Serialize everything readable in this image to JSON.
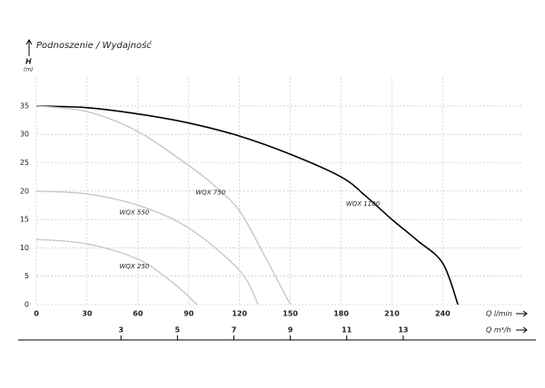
{
  "chart_data": {
    "type": "line",
    "title": "Podnoszenie / Wydajność",
    "y_label": "H",
    "y_unit": "(m)",
    "x_label": "Q l/min",
    "x2_label": "Q m³/h",
    "xlim": [
      0,
      287
    ],
    "xticks": [
      0,
      30,
      60,
      90,
      120,
      150,
      180,
      210,
      240
    ],
    "x2lim": [
      0,
      17.22
    ],
    "x2ticks": [
      3,
      5,
      7,
      9,
      11,
      13
    ],
    "ylim": [
      0,
      40
    ],
    "yticks": [
      0,
      5,
      10,
      15,
      20,
      25,
      30,
      35
    ],
    "grid": true,
    "series": [
      {
        "name": "WQX 1100",
        "color": "#000000",
        "x": [
          0,
          30,
          60,
          90,
          120,
          150,
          180,
          195,
          210,
          225,
          240,
          249
        ],
        "values": [
          35,
          34.7,
          33.6,
          32,
          29.7,
          26.5,
          22.5,
          19,
          15,
          11.3,
          7.3,
          0
        ]
      },
      {
        "name": "WQX 750",
        "color": "#c8c8c8",
        "x": [
          0,
          30,
          60,
          90,
          105,
          120,
          135,
          150
        ],
        "values": [
          35,
          34,
          30.5,
          24.5,
          21,
          16.5,
          8.5,
          0
        ]
      },
      {
        "name": "WQX 550",
        "color": "#c8c8c8",
        "x": [
          0,
          30,
          60,
          90,
          120,
          131
        ],
        "values": [
          20,
          19.5,
          17.5,
          13.5,
          6,
          0
        ]
      },
      {
        "name": "WQX 250",
        "color": "#c8c8c8",
        "x": [
          0,
          30,
          60,
          80,
          95
        ],
        "values": [
          11.5,
          10.7,
          8,
          4,
          0
        ]
      }
    ]
  }
}
